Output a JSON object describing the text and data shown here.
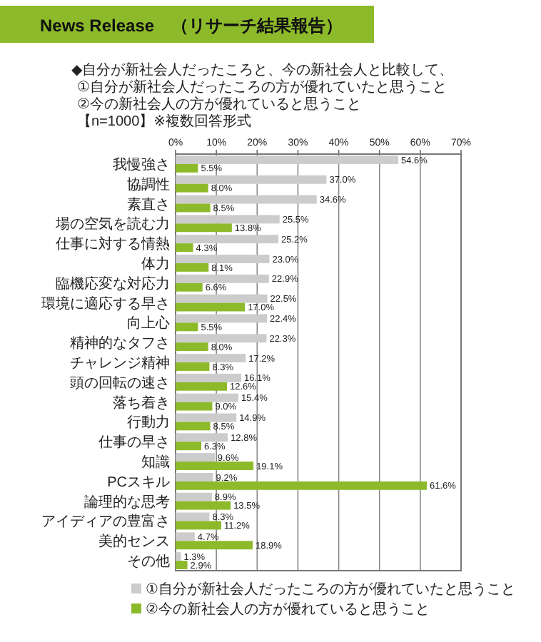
{
  "chart_data": {
    "type": "bar",
    "orientation": "horizontal",
    "title": "News Release　（リサーチ結果報告）",
    "subtitle": "◆自分が新社会人だったころと、今の新社会人と比較して、",
    "annotations": [
      "①自分が新社会人だったころの方が優れていたと思うこと",
      "②今の新社会人の方が優れていると思うこと",
      "【n=1000】※複数回答形式"
    ],
    "categories": [
      "我慢強さ",
      "協調性",
      "素直さ",
      "場の空気を読む力",
      "仕事に対する情熱",
      "体力",
      "臨機応変な対応力",
      "環境に適応する早さ",
      "向上心",
      "精神的なタフさ",
      "チャレンジ精神",
      "頭の回転の速さ",
      "落ち着き",
      "行動力",
      "仕事の早さ",
      "知識",
      "PCスキル",
      "論理的な思考",
      "アイディアの豊富さ",
      "美的センス",
      "その他"
    ],
    "series": [
      {
        "name": "①自分が新社会人だったころの方が優れていたと思うこと",
        "color": "#cccccc",
        "values": [
          54.6,
          37.0,
          34.6,
          25.5,
          25.2,
          23.0,
          22.9,
          22.5,
          22.4,
          22.3,
          17.2,
          16.1,
          15.4,
          14.9,
          12.8,
          9.6,
          9.2,
          8.9,
          8.3,
          4.7,
          1.3
        ],
        "value_labels": [
          "54.6%",
          "37.0%",
          "34.6%",
          "25.5%",
          "25.2%",
          "23.0%",
          "22.9%",
          "22.5%",
          "22.4%",
          "22.3%",
          "17.2%",
          "16.1%",
          "15.4%",
          "14.9%",
          "12.8%",
          "9.6%",
          "9.2%",
          "8.9%",
          "8.3%",
          "4.7%",
          "1.3%"
        ]
      },
      {
        "name": "②今の新社会人の方が優れていると思うこと",
        "color": "#8dba2b",
        "values": [
          5.5,
          8.0,
          8.5,
          13.8,
          4.3,
          8.1,
          6.6,
          17.0,
          5.5,
          8.0,
          8.3,
          12.6,
          9.0,
          8.5,
          6.3,
          19.1,
          61.6,
          13.5,
          11.2,
          18.9,
          2.9
        ],
        "value_labels": [
          "5.5%",
          "8.0%",
          "8.5%",
          "13.8%",
          "4.3%",
          "8.1%",
          "6.6%",
          "17.0%",
          "5.5%",
          "8.0%",
          "8.3%",
          "12.6%",
          "9.0%",
          "8.5%",
          "6.3%",
          "19.1%",
          "61.6%",
          "13.5%",
          "11.2%",
          "18.9%",
          "2.9%"
        ]
      }
    ],
    "xlim": [
      0,
      70
    ],
    "xticks": [
      {
        "value": 0,
        "label": "0%"
      },
      {
        "value": 10,
        "label": "10%"
      },
      {
        "value": 20,
        "label": "20%"
      },
      {
        "value": 30,
        "label": "30%"
      },
      {
        "value": 40,
        "label": "40%"
      },
      {
        "value": 50,
        "label": "50%"
      },
      {
        "value": 60,
        "label": "60%"
      },
      {
        "value": 70,
        "label": "70%"
      }
    ],
    "grid": "x",
    "legend": "bottom"
  }
}
